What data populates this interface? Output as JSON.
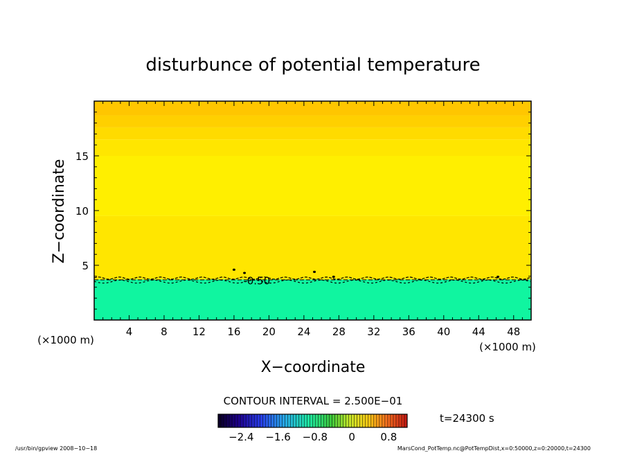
{
  "chart_data": {
    "type": "heatmap",
    "title": "disturbunce of potential temperature",
    "xlabel": "X−coordinate",
    "ylabel": "Z−coordinate",
    "x_unit": "(×1000 m)",
    "z_unit": "(×1000 m)",
    "xlim": [
      0,
      50
    ],
    "ylim": [
      0,
      20
    ],
    "x_ticks": [
      4,
      8,
      12,
      16,
      20,
      24,
      28,
      32,
      36,
      40,
      44,
      48
    ],
    "y_ticks": [
      5,
      10,
      15
    ],
    "y_tick_labels": [
      "5",
      "10",
      "15"
    ],
    "contour_label": "-0.50",
    "contour_interval": "CONTOUR INTERVAL = 2.500E−01",
    "time_label": "t=24300 s",
    "colorbar": {
      "min": -2.9,
      "max": 1.2,
      "tick_values": [
        -2.4,
        -1.6,
        -0.8,
        0,
        0.8
      ],
      "tick_labels": [
        "−2.4",
        "−1.6",
        "−0.8",
        "0",
        "0.8"
      ]
    },
    "layers": [
      {
        "z": [
          0,
          3.7
        ],
        "color": "#10f5a0"
      },
      {
        "z": [
          3.7,
          9.5
        ],
        "color": "#ffe600"
      },
      {
        "z": [
          9.5,
          15.0
        ],
        "color": "#ffef00"
      },
      {
        "z": [
          15.0,
          16.5
        ],
        "color": "#ffe600"
      },
      {
        "z": [
          16.5,
          17.6
        ],
        "color": "#ffdb00"
      },
      {
        "z": [
          17.6,
          18.7
        ],
        "color": "#ffd000"
      },
      {
        "z": [
          18.7,
          20.0
        ],
        "color": "#ffc600"
      }
    ],
    "contour_level_z": 3.7
  },
  "footer": {
    "left": "/usr/bin/gpview   2008−10−18",
    "right": "MarsCond_PotTemp.nc@PotTempDist,x=0:50000,z=0:20000,t=24300"
  }
}
